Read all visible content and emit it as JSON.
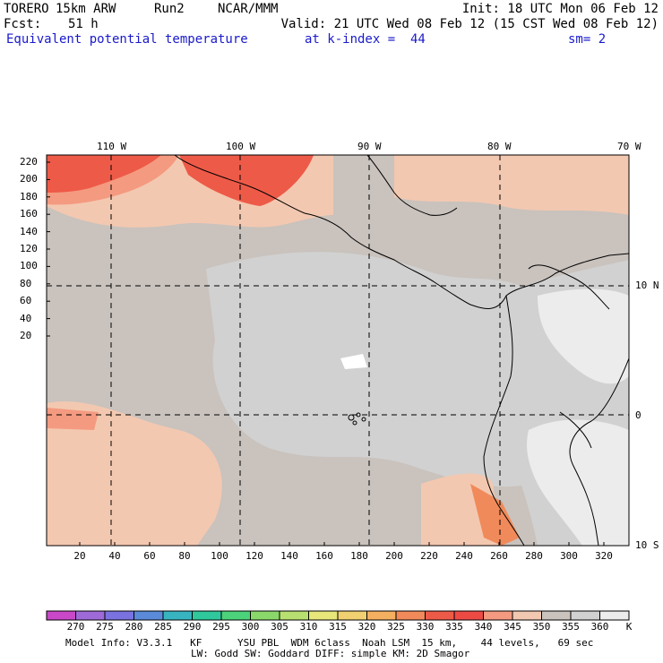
{
  "header": {
    "model": "TORERO",
    "resolution": "15km ARW",
    "run": "Run2",
    "center": "NCAR/MMM",
    "init": "Init: 18 UTC Mon 06 Feb 12",
    "fcst_label": "Fcst:",
    "fcst_value": "51 h",
    "valid": "Valid: 21 UTC Wed 08 Feb 12 (15 CST Wed 08 Feb 12)",
    "field": "Equivalent potential temperature",
    "level": "at k-index =  44",
    "smoothing": "sm= 2"
  },
  "map": {
    "lon_labels": [
      "110 W",
      "100 W",
      "90 W",
      "80 W",
      "70 W"
    ],
    "lat_labels": [
      "10 N",
      "0",
      "10 S"
    ],
    "x_ticks": [
      "20",
      "40",
      "60",
      "80",
      "100",
      "120",
      "140",
      "160",
      "180",
      "200",
      "220",
      "240",
      "260",
      "280",
      "300",
      "320"
    ],
    "y_ticks": [
      "220",
      "200",
      "180",
      "160",
      "140",
      "120",
      "100",
      "80",
      "60",
      "40",
      "20"
    ],
    "background_color": "#c9c2bd"
  },
  "colorbar": {
    "labels": [
      "270",
      "275",
      "280",
      "285",
      "290",
      "295",
      "300",
      "305",
      "310",
      "315",
      "320",
      "325",
      "330",
      "335",
      "340",
      "345",
      "350",
      "355",
      "360"
    ],
    "unit": "K",
    "colors": [
      "#c848c8",
      "#9e6ad8",
      "#7a72e0",
      "#5a8ad8",
      "#38b4c0",
      "#2ec89c",
      "#4cd27a",
      "#8ad86a",
      "#b8e070",
      "#e6e67a",
      "#f0d070",
      "#f4b060",
      "#f08a5a",
      "#ee5a48",
      "#ee4a44",
      "#f49a80",
      "#f3c8b0",
      "#c9c2bd",
      "#d1d1d1",
      "#ececec"
    ]
  },
  "footer": {
    "line1": "Model Info: V3.3.1   KF      YSU PBL  WDM 6class  Noah LSM  15 km,    44 levels,   69 sec",
    "line2": "LW: Godd SW: Goddard DIFF: simple KM: 2D Smagor"
  }
}
